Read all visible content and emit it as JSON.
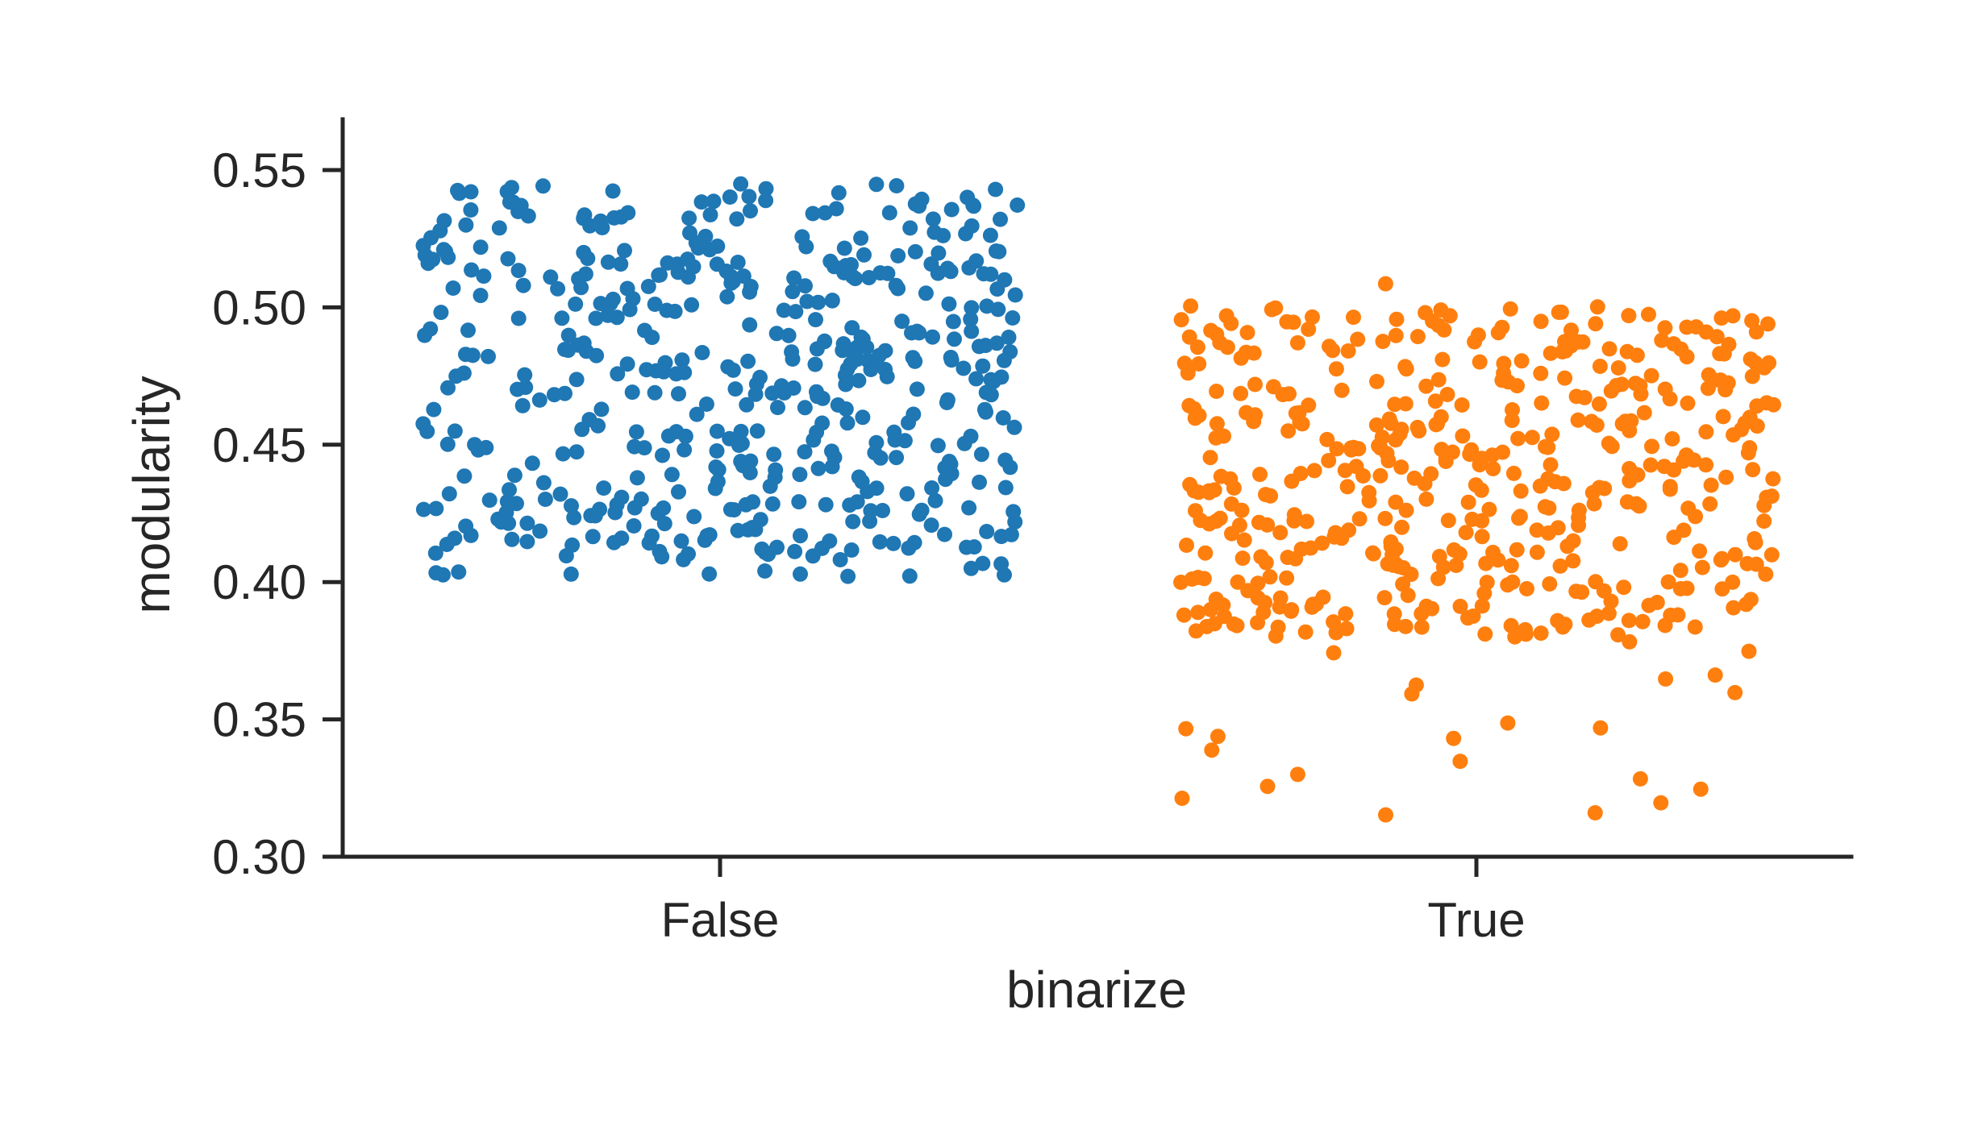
{
  "chart_data": {
    "type": "scatter",
    "subtype": "strip",
    "xlabel": "binarize",
    "ylabel": "modularity",
    "categories": [
      "False",
      "True"
    ],
    "ylim": [
      0.3,
      0.57
    ],
    "yticks": [
      0.3,
      0.35,
      0.4,
      0.45,
      0.5,
      0.55
    ],
    "ytick_labels": [
      "0.30",
      "0.35",
      "0.40",
      "0.45",
      "0.50",
      "0.55"
    ],
    "grid": false,
    "legend": "none",
    "series": [
      {
        "category": "False",
        "color": "#1f77b4",
        "n_points": 500,
        "value_range": [
          0.402,
          0.545
        ],
        "jitter": 0.4,
        "seed": 7
      },
      {
        "category": "True",
        "color": "#ff7f0e",
        "n_points": 500,
        "value_range": [
          0.314,
          0.512
        ],
        "jitter": 0.4,
        "seed": 13,
        "dense_range": [
          0.38,
          0.5
        ],
        "sparse_fraction": 0.12
      }
    ]
  }
}
